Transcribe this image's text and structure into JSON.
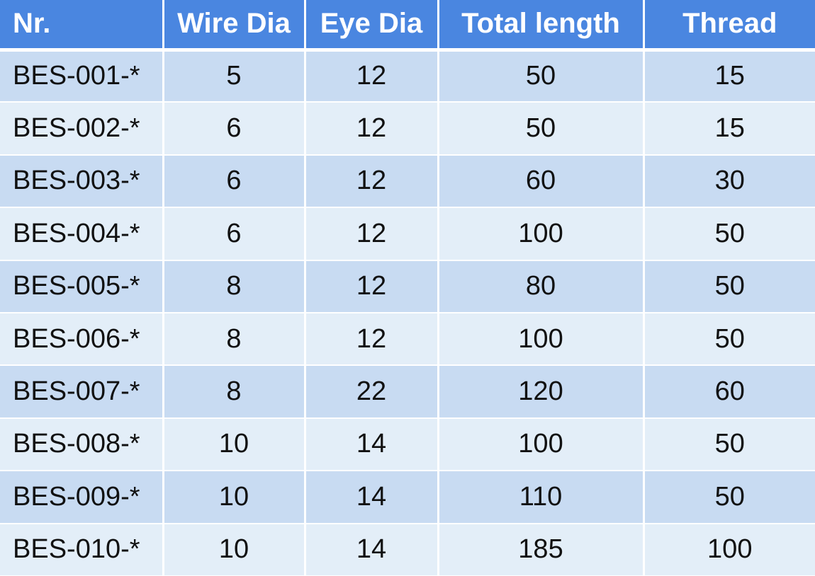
{
  "table": {
    "headers": [
      "Nr.",
      "Wire Dia",
      "Eye Dia",
      "Total length",
      "Thread"
    ],
    "rows": [
      [
        "BES-001-*",
        "5",
        "12",
        "50",
        "15"
      ],
      [
        "BES-002-*",
        "6",
        "12",
        "50",
        "15"
      ],
      [
        "BES-003-*",
        "6",
        "12",
        "60",
        "30"
      ],
      [
        "BES-004-*",
        "6",
        "12",
        "100",
        "50"
      ],
      [
        "BES-005-*",
        "8",
        "12",
        "80",
        "50"
      ],
      [
        "BES-006-*",
        "8",
        "12",
        "100",
        "50"
      ],
      [
        "BES-007-*",
        "8",
        "22",
        "120",
        "60"
      ],
      [
        "BES-008-*",
        "10",
        "14",
        "100",
        "50"
      ],
      [
        "BES-009-*",
        "10",
        "14",
        "110",
        "50"
      ],
      [
        "BES-010-*",
        "10",
        "14",
        "185",
        "100"
      ]
    ]
  },
  "colors": {
    "header_bg": "#4a86e0",
    "row_dark": "#c8dbf2",
    "row_light": "#e3eef8"
  }
}
